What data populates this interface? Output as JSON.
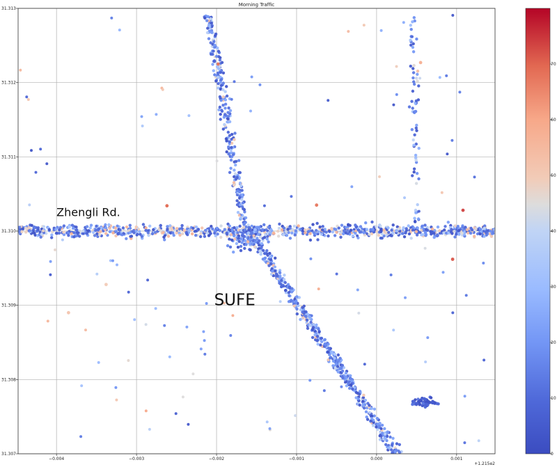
{
  "chart_data": {
    "type": "scatter",
    "title": "Morning Traffic",
    "xlabel": "",
    "ylabel": "",
    "x_offset_label": "+1.215e2",
    "xlim": [
      -0.00448,
      0.00148
    ],
    "ylim": [
      31.307,
      31.313
    ],
    "grid": true,
    "x_ticks": [
      {
        "value": -0.004,
        "label": "−0.004"
      },
      {
        "value": -0.003,
        "label": "−0.003"
      },
      {
        "value": -0.002,
        "label": "−0.002"
      },
      {
        "value": -0.001,
        "label": "−0.001"
      },
      {
        "value": 0.0,
        "label": "0.000"
      },
      {
        "value": 0.001,
        "label": "0.001"
      }
    ],
    "y_ticks": [
      {
        "value": 31.307,
        "label": "31.307"
      },
      {
        "value": 31.308,
        "label": "31.308"
      },
      {
        "value": 31.309,
        "label": "31.309"
      },
      {
        "value": 31.31,
        "label": "31.310"
      },
      {
        "value": 31.311,
        "label": "31.311"
      },
      {
        "value": 31.312,
        "label": "31.312"
      },
      {
        "value": 31.313,
        "label": "31.313"
      }
    ],
    "annotations": [
      {
        "text": "Zhengli Rd.",
        "x": -0.004,
        "y": 31.3102
      },
      {
        "text": "SUFE",
        "x": -0.00203,
        "y": 31.309
      }
    ],
    "colorbar": {
      "cmap": "coolwarm",
      "range": [
        0,
        80
      ],
      "ticks": [
        0,
        10,
        20,
        30,
        40,
        50,
        60,
        70
      ],
      "colors": [
        "#3b4cc0",
        "#f7f7f7",
        "#b40426"
      ]
    },
    "clusters": [
      {
        "kind": "line",
        "from": [
          -0.00448,
          31.31
        ],
        "to": [
          0.00148,
          31.31
        ],
        "n": 900,
        "spread": 4e-05,
        "mix": "horizontal"
      },
      {
        "kind": "line",
        "from": [
          -0.0021,
          31.3129
        ],
        "to": [
          -0.00165,
          31.3101
        ],
        "n": 260,
        "spread": 2.5e-05,
        "mix": "blueish"
      },
      {
        "kind": "line",
        "from": [
          -0.00165,
          31.3101
        ],
        "to": [
          0.00025,
          31.307
        ],
        "n": 520,
        "spread": 3e-05,
        "mix": "blueish"
      },
      {
        "kind": "line",
        "from": [
          0.00045,
          31.3129
        ],
        "to": [
          0.0005,
          31.3101
        ],
        "n": 70,
        "spread": 2e-05,
        "mix": "blueish"
      },
      {
        "kind": "blob",
        "center": [
          0.0006,
          31.3077
        ],
        "rx": 0.00015,
        "ry": 6e-05,
        "n": 60,
        "mix": "blue"
      },
      {
        "kind": "blob",
        "center": [
          -0.00158,
          31.3099
        ],
        "rx": 0.0002,
        "ry": 0.00012,
        "n": 90,
        "mix": "blueish"
      },
      {
        "kind": "scatter",
        "n": 120,
        "mix": "mixed"
      }
    ],
    "notable_points": [
      {
        "x": -0.00198,
        "y": 31.31225,
        "value": 68
      },
      {
        "x": -0.00262,
        "y": 31.31034,
        "value": 70
      },
      {
        "x": 0.00095,
        "y": 31.30962,
        "value": 72
      },
      {
        "x": 0.00055,
        "y": 31.31227,
        "value": 58
      },
      {
        "x": -0.00385,
        "y": 31.3089,
        "value": 52
      },
      {
        "x": -0.00338,
        "y": 31.30928,
        "value": 50
      },
      {
        "x": -0.00075,
        "y": 31.31035,
        "value": 68
      },
      {
        "x": 0.00108,
        "y": 31.31028,
        "value": 74
      }
    ]
  }
}
